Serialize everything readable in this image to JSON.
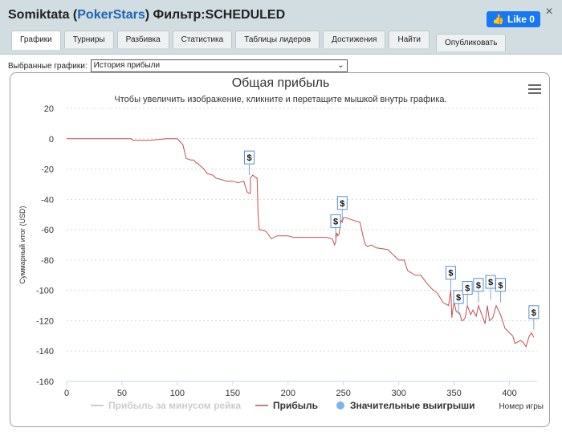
{
  "window": {
    "player": "Somiktata",
    "site": "PokerStars",
    "filter_label": "Фильтр:",
    "filter_value": "SCHEDULED",
    "close": "×",
    "like_label": "Like 0"
  },
  "tabs": [
    "Графики",
    "Турниры",
    "Разбивка",
    "Статистика",
    "Таблицы лидеров",
    "Достижения",
    "Найти"
  ],
  "publish_label": "Опубликовать",
  "selector": {
    "label": "Выбранные графики:",
    "value": "История прибыли"
  },
  "chart": {
    "title": "Общая прибыль",
    "subtitle": "Чтобы увеличить изображение, кликните и перетащите мышкой внутрь графика."
  },
  "chart_data": {
    "type": "line",
    "xlabel": "Номер игры",
    "ylabel": "Суммарный итог (USD)",
    "xlim": [
      0,
      425
    ],
    "ylim": [
      -160,
      20
    ],
    "x_ticks": [
      0,
      50,
      100,
      150,
      200,
      250,
      300,
      350,
      400
    ],
    "y_ticks": [
      20,
      0,
      -20,
      -40,
      -60,
      -80,
      -100,
      -120,
      -140,
      -160
    ],
    "grid": true,
    "legend": [
      "Прибыль за минусом рейка",
      "Прибыль",
      "Значительные выигрыши"
    ],
    "legend_placement": "bottom",
    "series": [
      {
        "name": "Прибыль",
        "color": "#c0504d",
        "x": [
          0,
          15,
          30,
          40,
          52,
          58,
          60,
          75,
          90,
          95,
          100,
          105,
          108,
          112,
          115,
          117,
          118,
          124,
          127,
          132,
          135,
          140,
          145,
          150,
          155,
          160,
          163,
          165,
          166,
          166,
          168,
          172,
          173,
          174,
          175,
          180,
          185,
          190,
          200,
          205,
          220,
          230,
          235,
          240,
          241,
          242,
          243,
          244,
          245,
          246,
          247,
          248,
          249,
          250,
          252,
          260,
          265,
          268,
          270,
          272,
          275,
          280,
          290,
          300,
          305,
          308,
          315,
          320,
          325,
          330,
          335,
          340,
          345,
          347,
          348,
          349,
          350,
          352,
          355,
          357,
          358,
          360,
          362,
          365,
          367,
          370,
          372,
          375,
          378,
          380,
          382,
          385,
          388,
          392,
          396,
          400,
          403,
          405,
          410,
          412,
          415,
          418,
          420,
          422
        ],
        "y": [
          0,
          0,
          0,
          0,
          0,
          0,
          -1,
          -1,
          0,
          0,
          0,
          -4,
          -13,
          -14,
          -14,
          -16,
          -16,
          -20,
          -23,
          -24,
          -26,
          -27,
          -28,
          -28,
          -29,
          -28,
          -35,
          -36,
          -36,
          -26,
          -24,
          -26,
          -50,
          -60,
          -60,
          -61,
          -66,
          -64,
          -64,
          -65,
          -65,
          -65,
          -65,
          -66,
          -68,
          -70,
          -68,
          -62,
          -64,
          -63,
          -58,
          -54,
          -55,
          -52,
          -52,
          -54,
          -55,
          -65,
          -70,
          -71,
          -70,
          -72,
          -73,
          -80,
          -80,
          -87,
          -90,
          -90,
          -95,
          -99,
          -102,
          -108,
          -110,
          -100,
          -118,
          -112,
          -108,
          -114,
          -115,
          -120,
          -120,
          -118,
          -110,
          -116,
          -113,
          -117,
          -110,
          -116,
          -122,
          -110,
          -120,
          -118,
          -110,
          -116,
          -125,
          -128,
          -130,
          -135,
          -133,
          -134,
          -137,
          -130,
          -128,
          -131
        ]
      }
    ],
    "big_wins": [
      {
        "x": 165,
        "y": -24,
        "label": "$"
      },
      {
        "x": 243,
        "y": -66,
        "label": "$"
      },
      {
        "x": 249,
        "y": -54,
        "label": "$"
      },
      {
        "x": 347,
        "y": -100,
        "label": "$"
      },
      {
        "x": 354,
        "y": -116,
        "label": "$"
      },
      {
        "x": 362,
        "y": -110,
        "label": "$"
      },
      {
        "x": 372,
        "y": -108,
        "label": "$"
      },
      {
        "x": 383,
        "y": -106,
        "label": "$"
      },
      {
        "x": 392,
        "y": -108,
        "label": "$"
      },
      {
        "x": 422,
        "y": -126,
        "label": "$"
      }
    ]
  }
}
